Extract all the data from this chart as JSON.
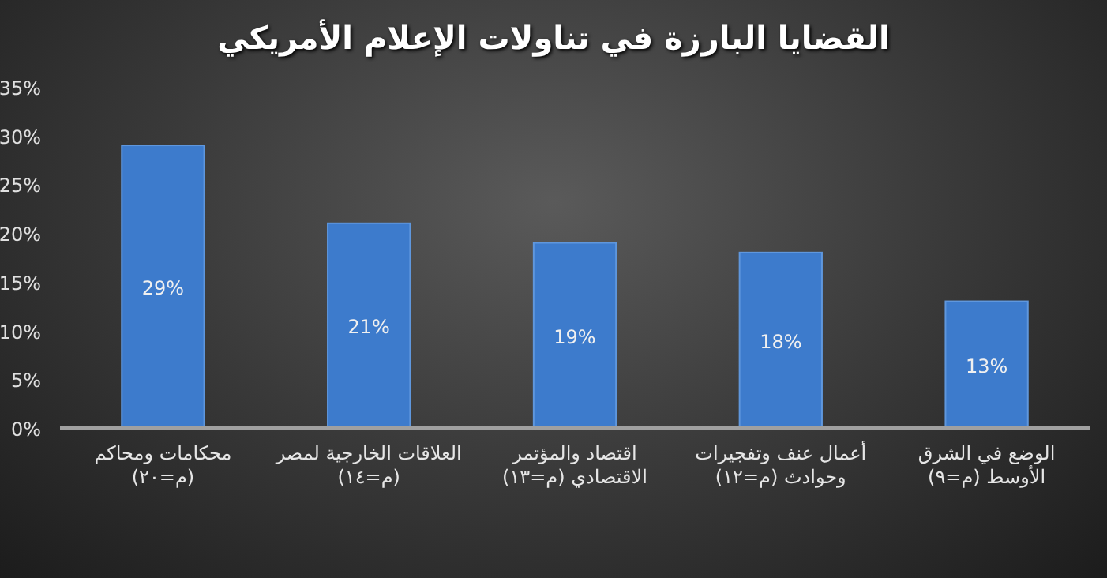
{
  "chart_data": {
    "type": "bar",
    "title": "القضايا البارزة في تناولات الإعلام الأمريكي",
    "categories": [
      "محكامات ومحاكم (م=٢٠)",
      "العلاقات الخارجية لمصر (م=١٤)",
      "اقتصاد والمؤتمر الاقتصادي (م=١٣)",
      "أعمال عنف وتفجيرات وحوادث (م=١٢)",
      "الوضع في الشرق الأوسط (م=٩)"
    ],
    "values": [
      29,
      21,
      19,
      18,
      13
    ],
    "color": "#3d7bcc",
    "ylim": [
      0,
      35
    ],
    "yticks": [
      {
        "value": 0,
        "label": "0%"
      },
      {
        "value": 5,
        "label": "5%"
      },
      {
        "value": 10,
        "label": "10%"
      },
      {
        "value": 15,
        "label": "15%"
      },
      {
        "value": 20,
        "label": "20%"
      },
      {
        "value": 25,
        "label": "25%"
      },
      {
        "value": 30,
        "label": "30%"
      },
      {
        "value": 35,
        "label": "35%"
      }
    ],
    "value_labels": [
      "29%",
      "21%",
      "19%",
      "18%",
      "13%"
    ]
  }
}
